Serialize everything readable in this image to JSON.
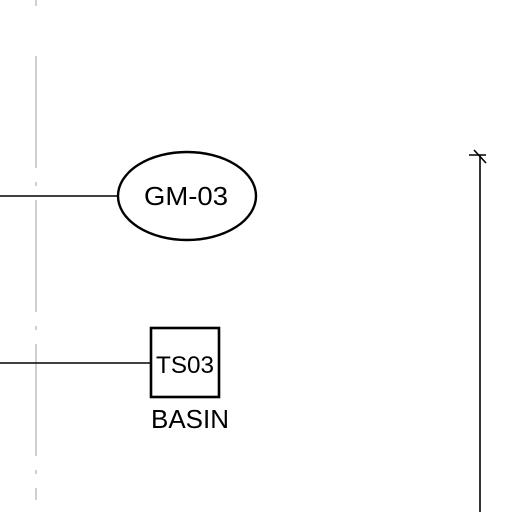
{
  "drawing": {
    "ellipse_tag": {
      "label": "GM-03"
    },
    "box_tag": {
      "label": "TS03",
      "caption": "BASIN"
    }
  },
  "colors": {
    "ink": "#000000",
    "centerline": "#b0b0b0",
    "background": "#ffffff"
  }
}
